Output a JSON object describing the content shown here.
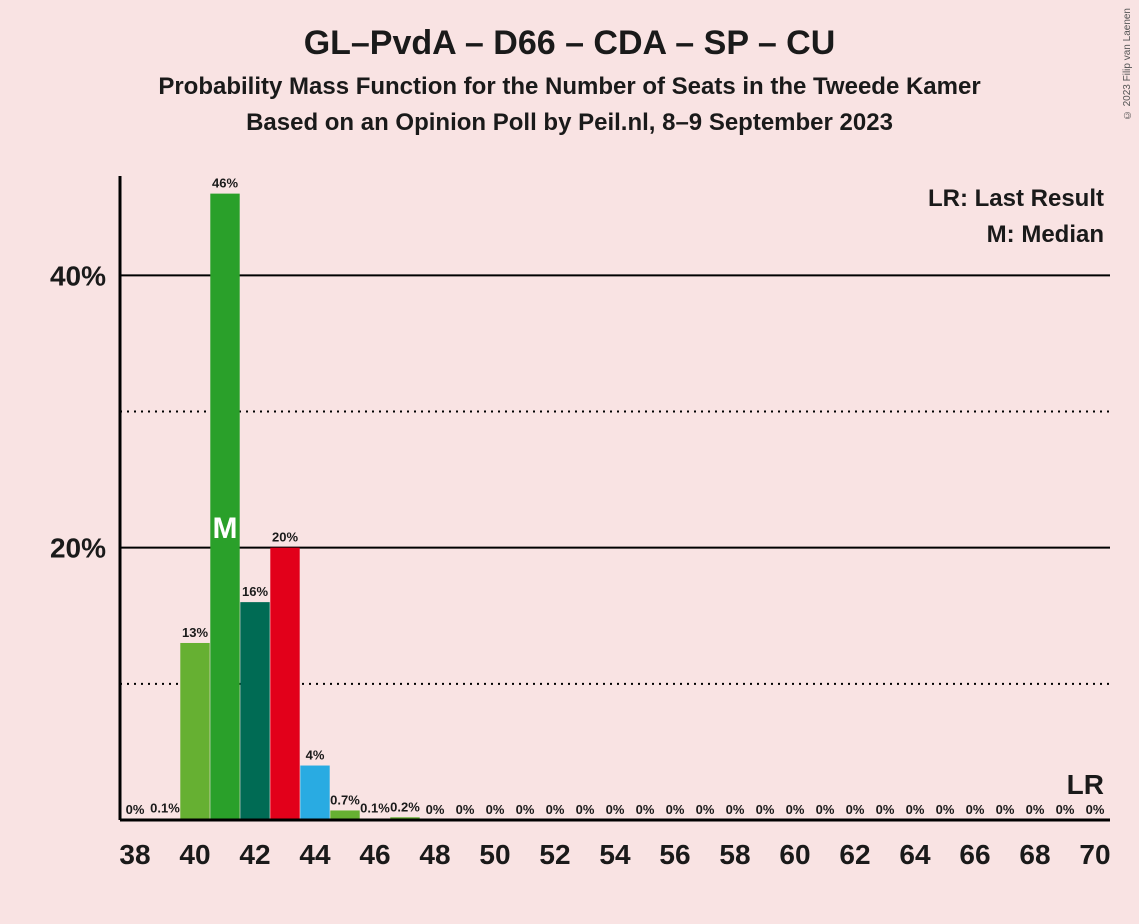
{
  "title_main": "GL–PvdA – D66 – CDA – SP – CU",
  "title_sub1": "Probability Mass Function for the Number of Seats in the Tweede Kamer",
  "title_sub2": "Based on an Opinion Poll by Peil.nl, 8–9 September 2023",
  "copyright": "© 2023 Filip van Laenen",
  "legend": {
    "lr": "LR: Last Result",
    "m": "M: Median"
  },
  "chart": {
    "type": "bar",
    "background_color": "#f9e3e3",
    "axis_color": "#000000",
    "grid_solid_color": "#000000",
    "grid_dotted_color": "#000000",
    "title_fontsize": 34,
    "sub_fontsize": 24,
    "label_fontsize": 13,
    "axis_fontsize": 28,
    "x": {
      "min": 38,
      "max": 70,
      "tick_step": 2
    },
    "y": {
      "min": 0,
      "max": 47,
      "major_lines": [
        20,
        40
      ],
      "minor_lines": [
        10,
        30
      ]
    },
    "bars": [
      {
        "x": 38,
        "value": 0,
        "label": "0%",
        "color": "#66b032"
      },
      {
        "x": 39,
        "value": 0.1,
        "label": "0.1%",
        "color": "#66b032"
      },
      {
        "x": 40,
        "value": 13,
        "label": "13%",
        "color": "#66b032"
      },
      {
        "x": 41,
        "value": 46,
        "label": "46%",
        "color": "#2aa02a",
        "median": true
      },
      {
        "x": 42,
        "value": 16,
        "label": "16%",
        "color": "#006b54"
      },
      {
        "x": 43,
        "value": 20,
        "label": "20%",
        "color": "#e2001a"
      },
      {
        "x": 44,
        "value": 4,
        "label": "4%",
        "color": "#29abe2"
      },
      {
        "x": 45,
        "value": 0.7,
        "label": "0.7%",
        "color": "#66b032"
      },
      {
        "x": 46,
        "value": 0.1,
        "label": "0.1%",
        "color": "#66b032"
      },
      {
        "x": 47,
        "value": 0.2,
        "label": "0.2%",
        "color": "#66b032"
      },
      {
        "x": 48,
        "value": 0,
        "label": "0%",
        "color": "#66b032"
      },
      {
        "x": 49,
        "value": 0,
        "label": "0%",
        "color": "#66b032"
      },
      {
        "x": 50,
        "value": 0,
        "label": "0%",
        "color": "#66b032"
      },
      {
        "x": 51,
        "value": 0,
        "label": "0%",
        "color": "#66b032"
      },
      {
        "x": 52,
        "value": 0,
        "label": "0%",
        "color": "#66b032"
      },
      {
        "x": 53,
        "value": 0,
        "label": "0%",
        "color": "#66b032"
      },
      {
        "x": 54,
        "value": 0,
        "label": "0%",
        "color": "#66b032"
      },
      {
        "x": 55,
        "value": 0,
        "label": "0%",
        "color": "#66b032"
      },
      {
        "x": 56,
        "value": 0,
        "label": "0%",
        "color": "#66b032"
      },
      {
        "x": 57,
        "value": 0,
        "label": "0%",
        "color": "#66b032"
      },
      {
        "x": 58,
        "value": 0,
        "label": "0%",
        "color": "#66b032"
      },
      {
        "x": 59,
        "value": 0,
        "label": "0%",
        "color": "#66b032"
      },
      {
        "x": 60,
        "value": 0,
        "label": "0%",
        "color": "#66b032"
      },
      {
        "x": 61,
        "value": 0,
        "label": "0%",
        "color": "#66b032"
      },
      {
        "x": 62,
        "value": 0,
        "label": "0%",
        "color": "#66b032"
      },
      {
        "x": 63,
        "value": 0,
        "label": "0%",
        "color": "#66b032"
      },
      {
        "x": 64,
        "value": 0,
        "label": "0%",
        "color": "#66b032"
      },
      {
        "x": 65,
        "value": 0,
        "label": "0%",
        "color": "#66b032"
      },
      {
        "x": 66,
        "value": 0,
        "label": "0%",
        "color": "#66b032"
      },
      {
        "x": 67,
        "value": 0,
        "label": "0%",
        "color": "#66b032"
      },
      {
        "x": 68,
        "value": 0,
        "label": "0%",
        "color": "#66b032"
      },
      {
        "x": 69,
        "value": 0,
        "label": "0%",
        "color": "#66b032"
      },
      {
        "x": 70,
        "value": 0,
        "label": "0%",
        "color": "#66b032"
      }
    ],
    "lr_marker": {
      "x": 70,
      "label": "LR"
    },
    "bar_width": 0.98,
    "median_mark_text": "M"
  }
}
